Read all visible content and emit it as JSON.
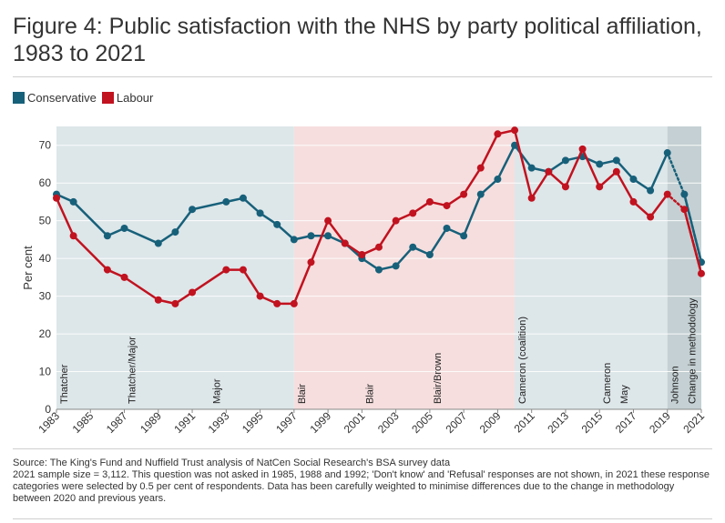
{
  "title": "Figure 4: Public satisfaction with the NHS by party political affiliation, 1983 to 2021",
  "notes": {
    "source": "Source: The King's Fund and Nuffield Trust analysis of NatCen Social Research's BSA survey data",
    "detail": "2021 sample size = 3,112. This question was not asked in 1985, 1988 and 1992; 'Don't know' and 'Refusal' responses are not shown, in 2021 these response categories were selected by 0.5 per cent of respondents. Data has been carefully weighted to minimise differences due to the change in methodology between 2020 and previous years."
  },
  "colors": {
    "conservative": "#17607a",
    "labour": "#c1121f",
    "band_conservative": "#dde6e9",
    "band_labour": "#f6dede",
    "band_method": "#c4d0d3"
  },
  "chart_data": {
    "type": "line",
    "title": "Figure 4: Public satisfaction with the NHS by party political affiliation, 1983 to 2021",
    "xlabel": "",
    "ylabel": "Per cent",
    "xlim": [
      1983,
      2021
    ],
    "ylim": [
      0,
      75
    ],
    "yticks": [
      0,
      10,
      20,
      30,
      40,
      50,
      60,
      70
    ],
    "xticks": [
      1983,
      1985,
      1987,
      1989,
      1991,
      1993,
      1995,
      1997,
      1999,
      2001,
      2003,
      2005,
      2007,
      2009,
      2011,
      2013,
      2015,
      2017,
      2019,
      2021
    ],
    "grid": true,
    "legend_position": "top-left",
    "series": [
      {
        "name": "Conservative",
        "color": "#17607a",
        "points": [
          [
            1983,
            57
          ],
          [
            1984,
            55
          ],
          [
            1986,
            46
          ],
          [
            1987,
            48
          ],
          [
            1989,
            44
          ],
          [
            1990,
            47
          ],
          [
            1991,
            53
          ],
          [
            1993,
            55
          ],
          [
            1994,
            56
          ],
          [
            1995,
            52
          ],
          [
            1996,
            49
          ],
          [
            1997,
            45
          ],
          [
            1998,
            46
          ],
          [
            1999,
            46
          ],
          [
            2000,
            44
          ],
          [
            2001,
            40
          ],
          [
            2002,
            37
          ],
          [
            2003,
            38
          ],
          [
            2004,
            43
          ],
          [
            2005,
            41
          ],
          [
            2006,
            48
          ],
          [
            2007,
            46
          ],
          [
            2008,
            57
          ],
          [
            2009,
            61
          ],
          [
            2010,
            70
          ],
          [
            2011,
            64
          ],
          [
            2012,
            63
          ],
          [
            2013,
            66
          ],
          [
            2014,
            67
          ],
          [
            2015,
            65
          ],
          [
            2016,
            66
          ],
          [
            2017,
            61
          ],
          [
            2018,
            58
          ],
          [
            2019,
            68
          ],
          [
            2020,
            57
          ],
          [
            2021,
            39
          ]
        ],
        "dotted_from": 2019
      },
      {
        "name": "Labour",
        "color": "#c1121f",
        "points": [
          [
            1983,
            56
          ],
          [
            1984,
            46
          ],
          [
            1986,
            37
          ],
          [
            1987,
            35
          ],
          [
            1989,
            29
          ],
          [
            1990,
            28
          ],
          [
            1991,
            31
          ],
          [
            1993,
            37
          ],
          [
            1994,
            37
          ],
          [
            1995,
            30
          ],
          [
            1996,
            28
          ],
          [
            1997,
            28
          ],
          [
            1998,
            39
          ],
          [
            1999,
            50
          ],
          [
            2000,
            44
          ],
          [
            2001,
            41
          ],
          [
            2002,
            43
          ],
          [
            2003,
            50
          ],
          [
            2004,
            52
          ],
          [
            2005,
            55
          ],
          [
            2006,
            54
          ],
          [
            2007,
            57
          ],
          [
            2008,
            64
          ],
          [
            2009,
            73
          ],
          [
            2010,
            74
          ],
          [
            2011,
            56
          ],
          [
            2012,
            63
          ],
          [
            2013,
            59
          ],
          [
            2014,
            69
          ],
          [
            2015,
            59
          ],
          [
            2016,
            63
          ],
          [
            2017,
            55
          ],
          [
            2018,
            51
          ],
          [
            2019,
            57
          ],
          [
            2020,
            53
          ],
          [
            2021,
            36
          ]
        ],
        "dotted_from": 2019
      }
    ],
    "bands": [
      {
        "from": 1983,
        "to": 1997,
        "party": "conservative"
      },
      {
        "from": 1997,
        "to": 2010,
        "party": "labour"
      },
      {
        "from": 2010,
        "to": 2019,
        "party": "conservative"
      },
      {
        "from": 2019,
        "to": 2021,
        "party": "method"
      }
    ],
    "annotations": [
      {
        "year": 1983,
        "label": "Thatcher"
      },
      {
        "year": 1987,
        "label": "Thatcher/Major"
      },
      {
        "year": 1992,
        "label": "Major"
      },
      {
        "year": 1997,
        "label": "Blair"
      },
      {
        "year": 2001,
        "label": "Blair"
      },
      {
        "year": 2005,
        "label": "Blair/Brown"
      },
      {
        "year": 2010,
        "label": "Cameron (coalition)"
      },
      {
        "year": 2015,
        "label": "Cameron"
      },
      {
        "year": 2016,
        "label": "May"
      },
      {
        "year": 2019,
        "label": "Johnson"
      },
      {
        "year": 2020,
        "label": "Change in methodology"
      }
    ]
  }
}
